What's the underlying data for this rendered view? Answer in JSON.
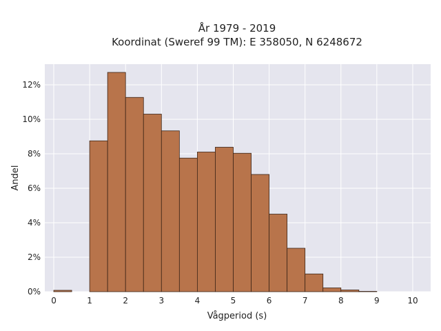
{
  "chart_data": {
    "type": "bar",
    "title_line1": "År 1979 - 2019",
    "title_line2": "Koordinat (Sweref 99 TM): E 358050, N 6248672",
    "xlabel": "Vågperiod (s)",
    "ylabel": "Andel",
    "xlim": [
      -0.25,
      10.5
    ],
    "ylim": [
      0,
      13.2
    ],
    "bin_width": 0.5,
    "bins_start": [
      0,
      0.5,
      1,
      1.5,
      2,
      2.5,
      3,
      3.5,
      4,
      4.5,
      5,
      5.5,
      6,
      6.5,
      7,
      7.5,
      8,
      8.5,
      9,
      9.5
    ],
    "values": [
      0.08,
      0,
      8.75,
      12.72,
      11.27,
      10.3,
      9.33,
      7.75,
      8.1,
      8.38,
      8.03,
      6.8,
      4.5,
      2.52,
      1.03,
      0.22,
      0.1,
      0.02,
      0,
      0
    ],
    "xticks": [
      0,
      1,
      2,
      3,
      4,
      5,
      6,
      7,
      8,
      9,
      10
    ],
    "yticks": [
      0,
      2,
      4,
      6,
      8,
      10,
      12
    ],
    "ytick_labels": [
      "0%",
      "2%",
      "4%",
      "6%",
      "8%",
      "10%",
      "12%"
    ],
    "bar_color": "#b8744b",
    "bar_edge_color": "#3b2417",
    "plot_background": "#e5e5ee",
    "grid": true,
    "grid_color": "#ffffff"
  }
}
